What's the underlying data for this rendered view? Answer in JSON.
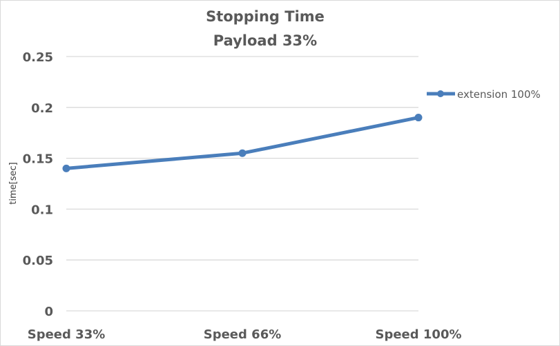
{
  "chart_data": {
    "type": "line",
    "title": "Stopping Time",
    "subtitle": "Payload 33%",
    "xlabel": "",
    "ylabel": "time[sec]",
    "categories": [
      "Speed 33%",
      "Speed 66%",
      "Speed 100%"
    ],
    "series": [
      {
        "name": "extension 100%",
        "values": [
          0.14,
          0.155,
          0.19
        ],
        "color": "#4a7ebb"
      }
    ],
    "ylim": [
      0,
      0.25
    ],
    "yticks": [
      "0",
      "0.05",
      "0.1",
      "0.15",
      "0.2",
      "0.25"
    ],
    "grid": true,
    "legend": "right"
  }
}
